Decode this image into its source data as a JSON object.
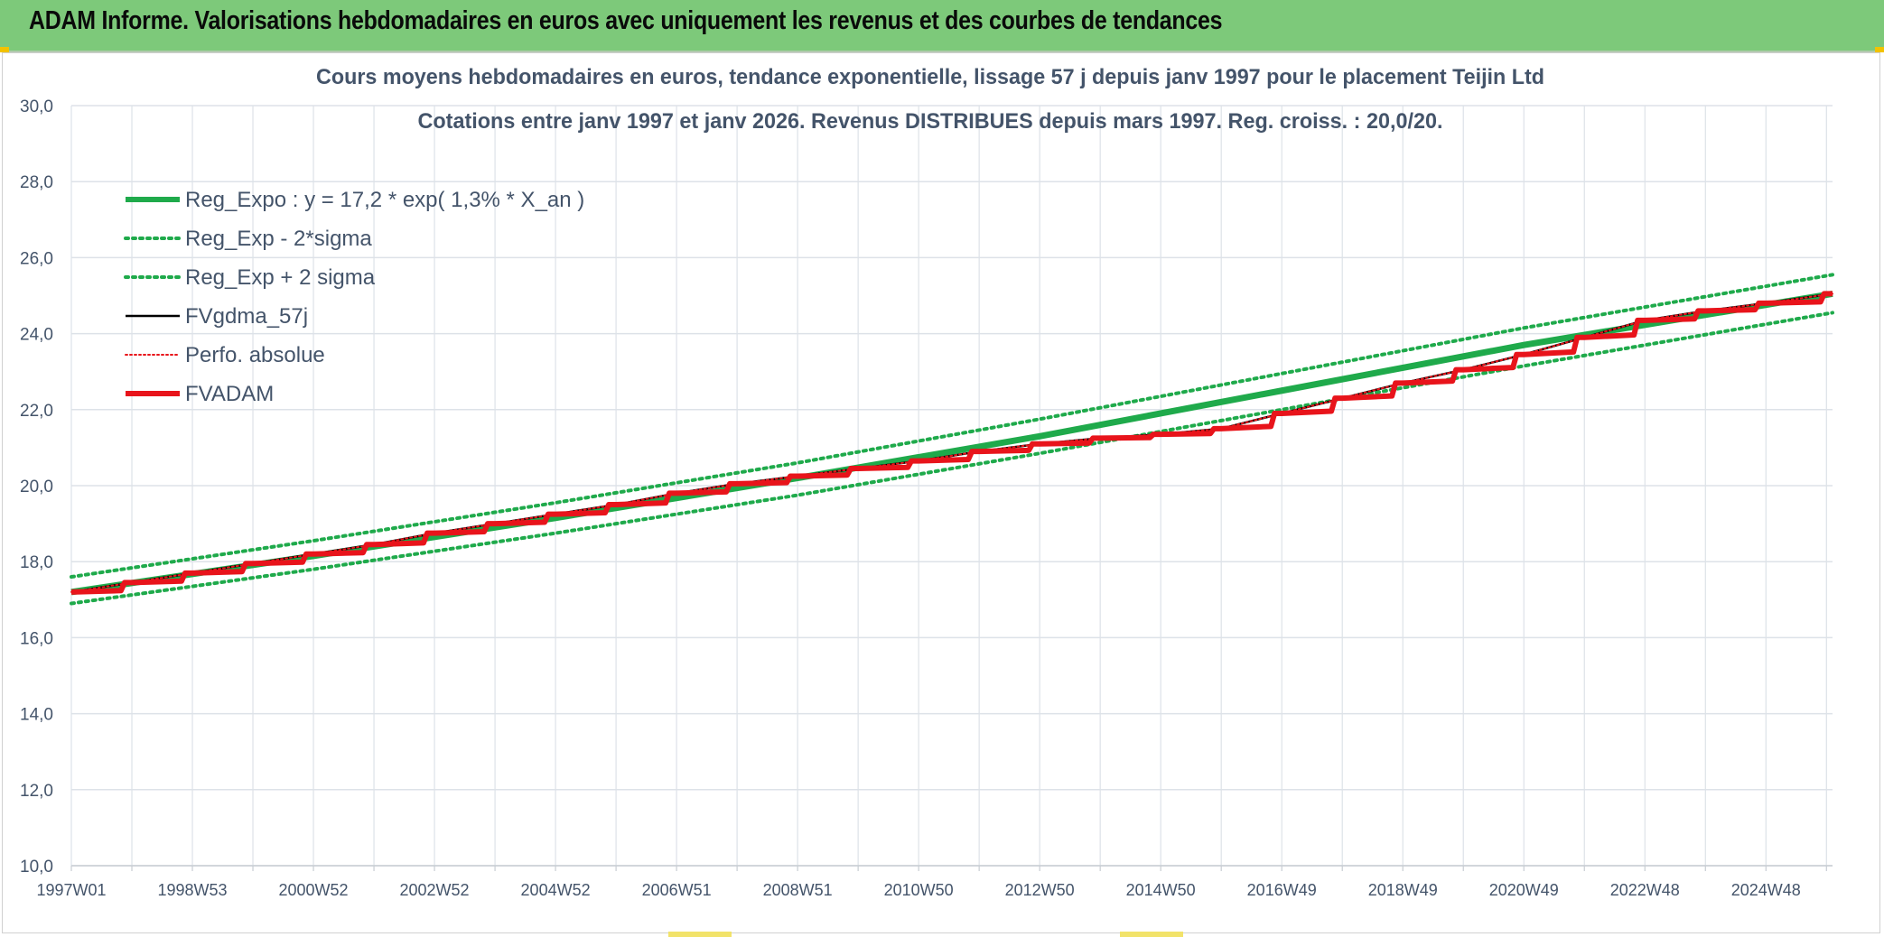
{
  "banner": {
    "title": "ADAM Informe. Valorisations hebdomadaires en euros avec uniquement les revenus et des courbes de tendances"
  },
  "chart_data": {
    "type": "line",
    "title": "Cours moyens hebdomadaires en euros, tendance exponentielle, lissage 57 j depuis janv 1997 pour le placement Teijin Ltd",
    "subtitle": "Cotations entre janv 1997 et janv 2026. Revenus DISTRIBUES depuis mars 1997. Reg. croiss. : 20,0/20.",
    "xlabel": "",
    "ylabel": "",
    "xlim": [
      1997.0,
      2026.1
    ],
    "ylim": [
      10,
      30
    ],
    "grid": true,
    "legend_position": "top-left",
    "x_tick_labels": [
      "1997W01",
      "1998W53",
      "2000W52",
      "2002W52",
      "2004W52",
      "2006W51",
      "2008W51",
      "2010W50",
      "2012W50",
      "2014W50",
      "2016W49",
      "2018W49",
      "2020W49",
      "2022W48",
      "2024W48"
    ],
    "x_tick_values": [
      1997.0,
      1999.0,
      2001.0,
      2003.0,
      2005.0,
      2007.0,
      2009.0,
      2011.0,
      2013.0,
      2015.0,
      2017.0,
      2019.0,
      2021.0,
      2023.0,
      2025.0
    ],
    "y_tick_labels": [
      "10,0",
      "12,0",
      "14,0",
      "16,0",
      "18,0",
      "20,0",
      "22,0",
      "24,0",
      "26,0",
      "28,0",
      "30,0"
    ],
    "y_tick_values": [
      10,
      12,
      14,
      16,
      18,
      20,
      22,
      24,
      26,
      28,
      30
    ],
    "colors": {
      "green": "#1faa4b",
      "red": "#e8141b",
      "black": "#000000",
      "grid": "#dde2e8",
      "text": "#44546a"
    },
    "series": [
      {
        "name": "Reg_Expo : y = 17,2 * exp( 1,3% *  X_an )",
        "style": "solid-thick",
        "color": "#1faa4b",
        "x": [
          1997.0,
          2001.0,
          2005.0,
          2009.0,
          2013.0,
          2017.0,
          2021.0,
          2026.1
        ],
        "y": [
          17.2,
          18.15,
          19.15,
          20.2,
          21.3,
          22.5,
          23.7,
          25.05
        ]
      },
      {
        "name": "Reg_Exp - 2*sigma",
        "style": "dotted",
        "color": "#1faa4b",
        "x": [
          1997.0,
          2001.0,
          2005.0,
          2009.0,
          2013.0,
          2017.0,
          2021.0,
          2026.1
        ],
        "y": [
          16.9,
          17.8,
          18.75,
          19.75,
          20.85,
          22.0,
          23.15,
          24.55
        ]
      },
      {
        "name": "Reg_Exp + 2 sigma",
        "style": "dotted",
        "color": "#1faa4b",
        "x": [
          1997.0,
          2001.0,
          2005.0,
          2009.0,
          2013.0,
          2017.0,
          2021.0,
          2026.1
        ],
        "y": [
          17.6,
          18.55,
          19.55,
          20.6,
          21.75,
          22.95,
          24.15,
          25.55
        ]
      },
      {
        "name": "FVgdma_57j",
        "style": "solid",
        "color": "#000000",
        "x": [
          1997.0,
          1998.0,
          1999.0,
          2000.0,
          2001.0,
          2002.0,
          2003.0,
          2004.0,
          2005.0,
          2006.0,
          2007.0,
          2008.0,
          2009.0,
          2010.0,
          2011.0,
          2012.0,
          2013.0,
          2014.0,
          2015.0,
          2016.0,
          2017.0,
          2018.0,
          2019.0,
          2020.0,
          2021.0,
          2022.0,
          2023.0,
          2024.0,
          2025.0,
          2026.1
        ],
        "y": [
          17.2,
          17.45,
          17.7,
          17.95,
          18.2,
          18.45,
          18.75,
          19.0,
          19.25,
          19.5,
          19.8,
          20.05,
          20.25,
          20.45,
          20.65,
          20.9,
          21.1,
          21.25,
          21.35,
          21.5,
          21.9,
          22.3,
          22.7,
          23.05,
          23.45,
          23.9,
          24.35,
          24.6,
          24.8,
          25.05
        ]
      },
      {
        "name": "Perfo. absolue",
        "style": "dotted-thin",
        "color": "#e8141b",
        "x": [
          1997.0,
          1998.0,
          1999.0,
          2000.0,
          2001.0,
          2002.0,
          2003.0,
          2004.0,
          2005.0,
          2006.0,
          2007.0,
          2008.0,
          2009.0,
          2010.0,
          2011.0,
          2012.0,
          2013.0,
          2014.0,
          2015.0,
          2016.0,
          2017.0,
          2018.0,
          2019.0,
          2020.0,
          2021.0,
          2022.0,
          2023.0,
          2024.0,
          2025.0,
          2026.1
        ],
        "y": [
          17.2,
          17.45,
          17.7,
          17.95,
          18.2,
          18.45,
          18.75,
          19.0,
          19.25,
          19.5,
          19.8,
          20.05,
          20.25,
          20.45,
          20.65,
          20.9,
          21.1,
          21.25,
          21.35,
          21.5,
          21.9,
          22.3,
          22.7,
          23.05,
          23.45,
          23.9,
          24.35,
          24.6,
          24.8,
          25.05
        ]
      },
      {
        "name": "FVADAM",
        "style": "step-thick",
        "color": "#e8141b",
        "x": [
          1997.0,
          1998.0,
          1999.0,
          2000.0,
          2001.0,
          2002.0,
          2003.0,
          2004.0,
          2005.0,
          2006.0,
          2007.0,
          2008.0,
          2009.0,
          2010.0,
          2011.0,
          2012.0,
          2013.0,
          2014.0,
          2015.0,
          2016.0,
          2017.0,
          2018.0,
          2019.0,
          2020.0,
          2021.0,
          2022.0,
          2023.0,
          2024.0,
          2025.0,
          2026.1
        ],
        "y": [
          17.2,
          17.45,
          17.7,
          17.95,
          18.2,
          18.45,
          18.75,
          19.0,
          19.25,
          19.5,
          19.8,
          20.05,
          20.25,
          20.45,
          20.65,
          20.9,
          21.1,
          21.25,
          21.35,
          21.5,
          21.9,
          22.3,
          22.7,
          23.05,
          23.45,
          23.9,
          24.35,
          24.6,
          24.8,
          25.05
        ]
      }
    ]
  }
}
